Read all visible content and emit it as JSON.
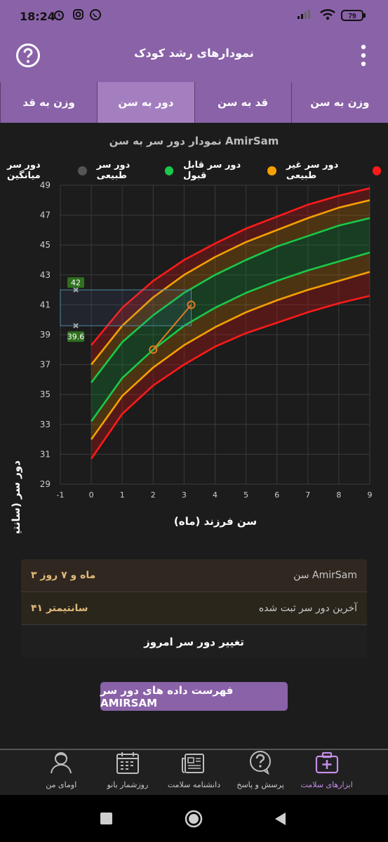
{
  "status_bar": {
    "time": "18:24",
    "battery": "79",
    "icons": [
      "alarm-icon",
      "instagram-icon",
      "whatsapp-icon",
      "signal-icon",
      "wifi-icon",
      "battery-icon"
    ]
  },
  "app_bar": {
    "title": "نمودارهای رشد کودک",
    "help_icon": "help-icon",
    "menu_icon": "more-vert-icon"
  },
  "tabs": [
    {
      "label": "وزن به سن",
      "active": false
    },
    {
      "label": "قد به سن",
      "active": false
    },
    {
      "label": "دور به سن",
      "active": true
    },
    {
      "label": "وزن به قد",
      "active": false
    }
  ],
  "chart": {
    "title": "نمودار دور سر به سن AmirSam",
    "legend": [
      {
        "label": "دور سر غیر طبیعی",
        "color": "#ff1a1a"
      },
      {
        "label": "دور سر قابل قبول",
        "color": "#f5a000"
      },
      {
        "label": "دور سر طبیعی",
        "color": "#19c94a"
      },
      {
        "label": "دور سر میانگین",
        "color": "#555555"
      }
    ],
    "ylabel": "دور سر (سانتیمتر)",
    "xlabel": "سن فرزند (ماه)",
    "marker_labels": [
      "42",
      "39.6"
    ]
  },
  "chart_data": {
    "type": "line",
    "xlim": [
      -1,
      9
    ],
    "ylim": [
      29,
      49
    ],
    "xticks": [
      -1,
      0,
      1,
      2,
      3,
      4,
      5,
      6,
      7,
      8,
      9
    ],
    "yticks": [
      29,
      31,
      33,
      35,
      37,
      39,
      41,
      43,
      45,
      47,
      49
    ],
    "x": [
      0,
      1,
      2,
      3,
      4,
      5,
      6,
      7,
      8,
      9
    ],
    "series": [
      {
        "color": "#ff1a1a",
        "values": [
          38.3,
          40.8,
          42.6,
          44.0,
          45.1,
          46.1,
          46.9,
          47.7,
          48.3,
          48.8
        ]
      },
      {
        "color": "#f5a000",
        "values": [
          37.0,
          39.6,
          41.5,
          43.0,
          44.2,
          45.2,
          46.0,
          46.8,
          47.5,
          48.0
        ]
      },
      {
        "color": "#19c94a",
        "values": [
          35.8,
          38.5,
          40.3,
          41.8,
          43.0,
          44.0,
          44.9,
          45.6,
          46.3,
          46.8
        ]
      },
      {
        "color": "#19c94a",
        "values": [
          33.2,
          36.1,
          38.0,
          39.6,
          40.8,
          41.8,
          42.6,
          43.3,
          43.9,
          44.5
        ]
      },
      {
        "color": "#f5a000",
        "values": [
          32.0,
          34.9,
          36.8,
          38.3,
          39.5,
          40.5,
          41.3,
          42.0,
          42.6,
          43.2
        ]
      },
      {
        "color": "#ff1a1a",
        "values": [
          30.7,
          33.7,
          35.6,
          37.0,
          38.2,
          39.1,
          39.8,
          40.5,
          41.1,
          41.6
        ]
      }
    ],
    "child_points": {
      "x": [
        2.0,
        3.23
      ],
      "y": [
        38.0,
        41.0
      ],
      "color": "#e07b20"
    },
    "reference_box": {
      "x": [
        -1,
        3.23
      ],
      "y": [
        39.6,
        42
      ]
    }
  },
  "info_card": {
    "age_label": "سن AmirSam",
    "age_value": "۳ ماه و ۷ روز",
    "last_label": "آخرین دور سر ثبت شده",
    "last_value": "۴۱ سانتیمتر",
    "action_label": "تغییر دور سر امروز"
  },
  "list_button": "فهرست داده های دور سر AMIRSAM",
  "bottom_nav": [
    {
      "label": "ابزارهای سلامت",
      "icon": "health-kit-icon",
      "active": true
    },
    {
      "label": "پرسش و پاسخ",
      "icon": "question-bubble-icon",
      "active": false
    },
    {
      "label": "دانشنامه سلامت",
      "icon": "newspaper-icon",
      "active": false
    },
    {
      "label": "روزشمار بانو",
      "icon": "calendar-icon",
      "active": false
    },
    {
      "label": "اومای من",
      "icon": "profile-icon",
      "active": false
    }
  ]
}
